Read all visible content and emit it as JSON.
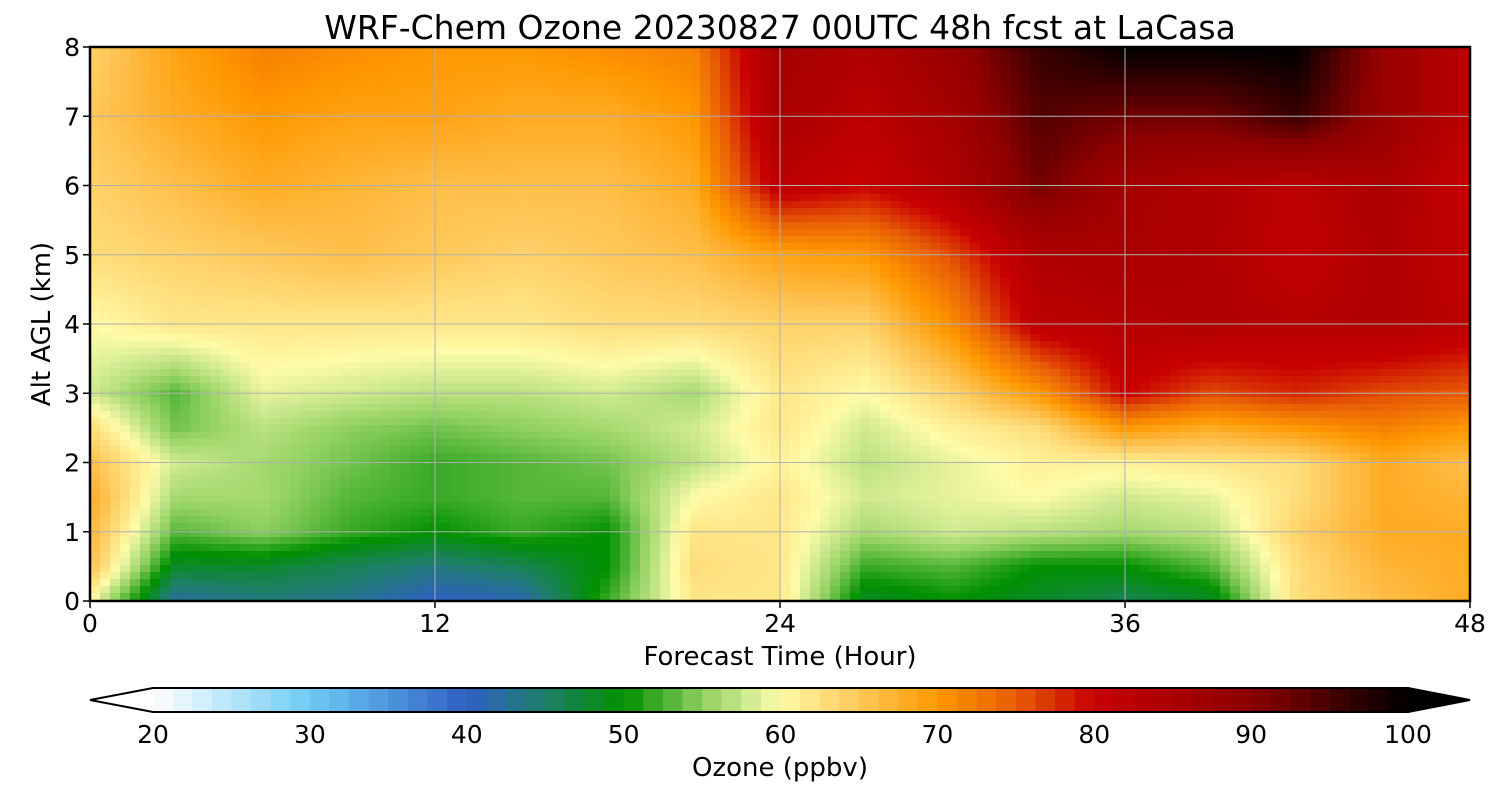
{
  "chart_data": {
    "type": "heatmap",
    "title": "WRF-Chem Ozone  20230827 00UTC 48h fcst at LaCasa",
    "xlabel": "Forecast Time (Hour)",
    "ylabel": "Alt AGL (km)",
    "xlim": [
      0,
      48
    ],
    "ylim": [
      0,
      8
    ],
    "x_ticks": [
      0,
      12,
      24,
      36,
      48
    ],
    "y_ticks": [
      0,
      1,
      2,
      3,
      4,
      5,
      6,
      7,
      8
    ],
    "grid": true,
    "x": [
      0,
      3,
      6,
      9,
      12,
      15,
      18,
      21,
      24,
      27,
      30,
      33,
      36,
      39,
      42,
      45,
      48
    ],
    "y": [
      0,
      0.5,
      1,
      1.5,
      2,
      2.5,
      3,
      4,
      5,
      6,
      7,
      8
    ],
    "z": [
      [
        60,
        42,
        44,
        43,
        40,
        41,
        52,
        62,
        62,
        48,
        50,
        48,
        46,
        48,
        63,
        66,
        68
      ],
      [
        66,
        48,
        48,
        46,
        44,
        46,
        50,
        63,
        62,
        52,
        53,
        50,
        50,
        53,
        63,
        67,
        68
      ],
      [
        67,
        53,
        55,
        52,
        50,
        52,
        50,
        62,
        62,
        56,
        58,
        57,
        56,
        57,
        64,
        68,
        68
      ],
      [
        68,
        56,
        56,
        53,
        52,
        53,
        53,
        60,
        62,
        58,
        59,
        60,
        58,
        59,
        63,
        68,
        67
      ],
      [
        66,
        58,
        56,
        54,
        52,
        53,
        54,
        57,
        61,
        57,
        59,
        61,
        61,
        62,
        63,
        68,
        66
      ],
      [
        63,
        54,
        57,
        55,
        54,
        55,
        56,
        58,
        62,
        58,
        61,
        63,
        70,
        68,
        70,
        72,
        70
      ],
      [
        58,
        53,
        59,
        58,
        57,
        57,
        58,
        56,
        62,
        60,
        64,
        70,
        80,
        76,
        78,
        76,
        75
      ],
      [
        60,
        62,
        62,
        62,
        62,
        62,
        63,
        63,
        64,
        64,
        71,
        82,
        83,
        84,
        83,
        84,
        82
      ],
      [
        63,
        64,
        65,
        66,
        65,
        64,
        65,
        66,
        69,
        70,
        76,
        84,
        85,
        84,
        81,
        84,
        81
      ],
      [
        64,
        66,
        68,
        67,
        66,
        66,
        66,
        68,
        82,
        80,
        84,
        92,
        86,
        84,
        82,
        85,
        80
      ],
      [
        65,
        68,
        70,
        69,
        69,
        68,
        68,
        70,
        85,
        82,
        86,
        94,
        92,
        92,
        96,
        88,
        82
      ],
      [
        64,
        69,
        72,
        71,
        70,
        70,
        71,
        72,
        86,
        84,
        88,
        96,
        100,
        100,
        100,
        88,
        82
      ]
    ],
    "colorbar": {
      "label": "Ozone  (ppbv)",
      "min": 20,
      "max": 100,
      "ticks": [
        20,
        30,
        40,
        50,
        60,
        70,
        80,
        90,
        100
      ],
      "extend": "both",
      "color_stops": [
        {
          "v": 20,
          "c": "#ffffff"
        },
        {
          "v": 30,
          "c": "#6ecbf5"
        },
        {
          "v": 40,
          "c": "#2f5fc4"
        },
        {
          "v": 45,
          "c": "#1f7f6a"
        },
        {
          "v": 50,
          "c": "#009000"
        },
        {
          "v": 55,
          "c": "#8fd060"
        },
        {
          "v": 58,
          "c": "#d0ea90"
        },
        {
          "v": 60,
          "c": "#fffba8"
        },
        {
          "v": 65,
          "c": "#ffc85a"
        },
        {
          "v": 70,
          "c": "#ff9800"
        },
        {
          "v": 75,
          "c": "#e85d05"
        },
        {
          "v": 80,
          "c": "#c80000"
        },
        {
          "v": 90,
          "c": "#8c0000"
        },
        {
          "v": 100,
          "c": "#000000"
        }
      ]
    }
  }
}
